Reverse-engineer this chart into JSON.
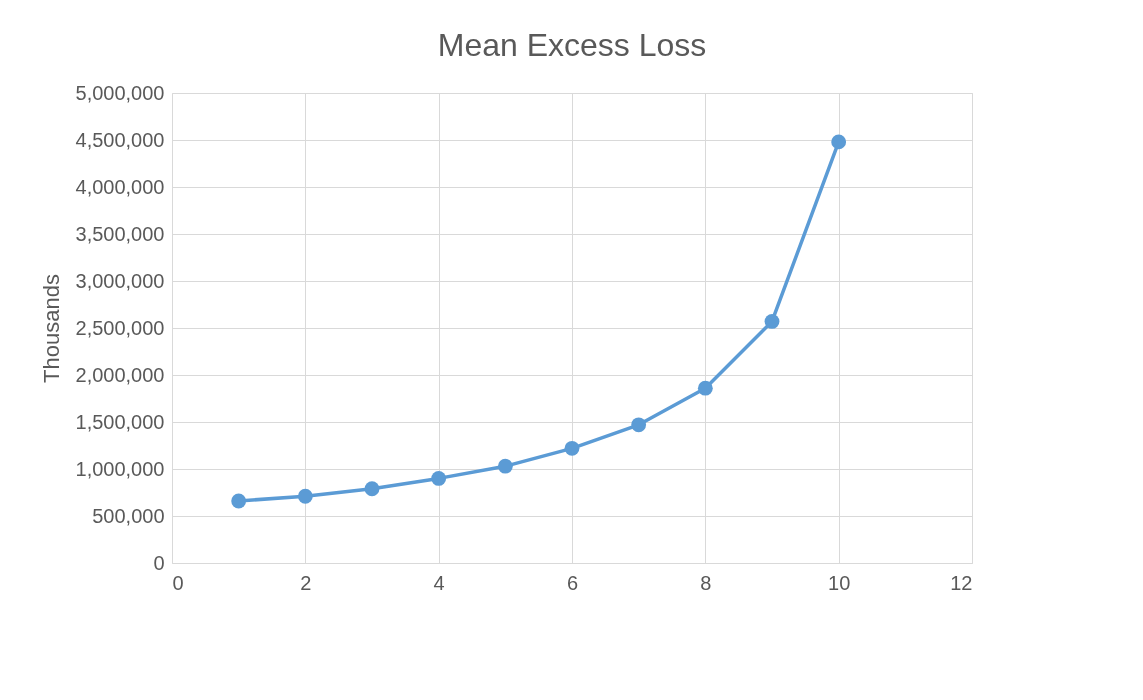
{
  "chart_data": {
    "type": "line",
    "title": "Mean Excess Loss",
    "ylabel": "Thousands",
    "x": [
      1,
      2,
      3,
      4,
      5,
      6,
      7,
      8,
      9,
      10
    ],
    "series": [
      {
        "color": "#5b9bd5",
        "values": [
          660000,
          710000,
          790000,
          900000,
          1030000,
          1220000,
          1470000,
          1860000,
          2570000,
          4480000
        ]
      }
    ],
    "xlim": [
      0,
      12
    ],
    "xticks": [
      0,
      2,
      4,
      6,
      8,
      10,
      12
    ],
    "ylim": [
      0,
      5000000
    ],
    "yticks": [
      0,
      {
        "value": 500000,
        "label": "500,000"
      },
      {
        "value": 1000000,
        "label": "1,000,000"
      },
      {
        "value": 1500000,
        "label": "1,500,000"
      },
      {
        "value": 2000000,
        "label": "2,000,000"
      },
      {
        "value": 2500000,
        "label": "2,500,000"
      },
      {
        "value": 3000000,
        "label": "3,000,000"
      },
      {
        "value": 3500000,
        "label": "3,500,000"
      },
      {
        "value": 4000000,
        "label": "4,000,000"
      },
      {
        "value": 4500000,
        "label": "4,500,000"
      },
      {
        "value": 5000000,
        "label": "5,000,000"
      }
    ],
    "grid": true,
    "marker": "circle",
    "line_style": "solid"
  }
}
